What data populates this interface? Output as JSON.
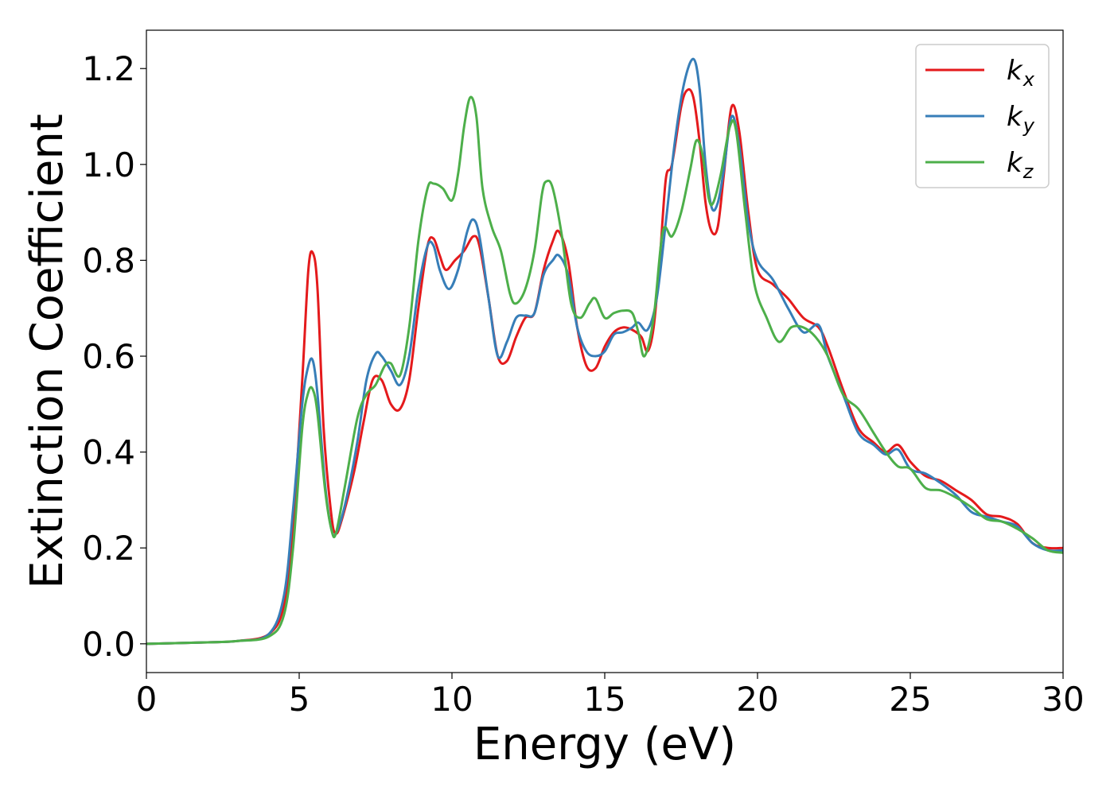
{
  "chart_data": {
    "type": "line",
    "title": "",
    "xlabel": "Energy (eV)",
    "ylabel": "Extinction Coefficient",
    "xlim": [
      0,
      30
    ],
    "ylim": [
      -0.06,
      1.28
    ],
    "xticks": [
      0,
      5,
      10,
      15,
      20,
      25,
      30
    ],
    "xtick_labels": [
      "0",
      "5",
      "10",
      "15",
      "20",
      "25",
      "30"
    ],
    "yticks": [
      0.0,
      0.2,
      0.4,
      0.6,
      0.8,
      1.0,
      1.2
    ],
    "ytick_labels": [
      "0.0",
      "0.2",
      "0.4",
      "0.6",
      "0.8",
      "1.0",
      "1.2"
    ],
    "grid": false,
    "legend_position": "top-right",
    "series": [
      {
        "name": "k",
        "subscript": "x",
        "color": "#e41a1c",
        "points": [
          [
            0,
            0
          ],
          [
            2,
            0.003
          ],
          [
            3,
            0.006
          ],
          [
            4,
            0.02
          ],
          [
            4.5,
            0.08
          ],
          [
            4.8,
            0.25
          ],
          [
            5.1,
            0.55
          ],
          [
            5.3,
            0.78
          ],
          [
            5.45,
            0.815
          ],
          [
            5.6,
            0.74
          ],
          [
            5.8,
            0.45
          ],
          [
            6.05,
            0.27
          ],
          [
            6.2,
            0.23
          ],
          [
            6.4,
            0.26
          ],
          [
            6.8,
            0.36
          ],
          [
            7.1,
            0.46
          ],
          [
            7.4,
            0.55
          ],
          [
            7.7,
            0.55
          ],
          [
            8.0,
            0.5
          ],
          [
            8.3,
            0.49
          ],
          [
            8.6,
            0.55
          ],
          [
            8.9,
            0.7
          ],
          [
            9.2,
            0.83
          ],
          [
            9.4,
            0.845
          ],
          [
            9.6,
            0.81
          ],
          [
            9.8,
            0.78
          ],
          [
            10.1,
            0.8
          ],
          [
            10.4,
            0.82
          ],
          [
            10.7,
            0.85
          ],
          [
            10.9,
            0.83
          ],
          [
            11.2,
            0.72
          ],
          [
            11.5,
            0.6
          ],
          [
            11.8,
            0.59
          ],
          [
            12.1,
            0.64
          ],
          [
            12.4,
            0.68
          ],
          [
            12.7,
            0.69
          ],
          [
            13.0,
            0.78
          ],
          [
            13.3,
            0.84
          ],
          [
            13.5,
            0.86
          ],
          [
            13.8,
            0.8
          ],
          [
            14.1,
            0.66
          ],
          [
            14.4,
            0.58
          ],
          [
            14.7,
            0.575
          ],
          [
            15.0,
            0.62
          ],
          [
            15.3,
            0.65
          ],
          [
            15.6,
            0.66
          ],
          [
            15.9,
            0.655
          ],
          [
            16.2,
            0.64
          ],
          [
            16.4,
            0.61
          ],
          [
            16.6,
            0.66
          ],
          [
            16.8,
            0.8
          ],
          [
            17.0,
            0.97
          ],
          [
            17.2,
            1.0
          ],
          [
            17.5,
            1.12
          ],
          [
            17.7,
            1.155
          ],
          [
            17.9,
            1.14
          ],
          [
            18.1,
            1.05
          ],
          [
            18.3,
            0.92
          ],
          [
            18.5,
            0.86
          ],
          [
            18.7,
            0.87
          ],
          [
            18.9,
            0.98
          ],
          [
            19.15,
            1.12
          ],
          [
            19.4,
            1.07
          ],
          [
            19.7,
            0.9
          ],
          [
            20.0,
            0.78
          ],
          [
            20.5,
            0.75
          ],
          [
            21.0,
            0.72
          ],
          [
            21.5,
            0.68
          ],
          [
            22.0,
            0.66
          ],
          [
            22.3,
            0.62
          ],
          [
            22.8,
            0.53
          ],
          [
            23.3,
            0.45
          ],
          [
            23.8,
            0.42
          ],
          [
            24.2,
            0.4
          ],
          [
            24.6,
            0.415
          ],
          [
            25.0,
            0.38
          ],
          [
            25.5,
            0.35
          ],
          [
            26.0,
            0.34
          ],
          [
            26.5,
            0.32
          ],
          [
            27.0,
            0.3
          ],
          [
            27.5,
            0.27
          ],
          [
            28.0,
            0.265
          ],
          [
            28.5,
            0.25
          ],
          [
            29.0,
            0.21
          ],
          [
            29.5,
            0.2
          ],
          [
            30,
            0.2
          ]
        ]
      },
      {
        "name": "k",
        "subscript": "y",
        "color": "#377eb8",
        "points": [
          [
            0,
            0
          ],
          [
            2,
            0.003
          ],
          [
            3,
            0.006
          ],
          [
            4,
            0.02
          ],
          [
            4.5,
            0.1
          ],
          [
            4.8,
            0.28
          ],
          [
            5.1,
            0.5
          ],
          [
            5.3,
            0.58
          ],
          [
            5.45,
            0.59
          ],
          [
            5.6,
            0.52
          ],
          [
            5.85,
            0.33
          ],
          [
            6.05,
            0.24
          ],
          [
            6.2,
            0.23
          ],
          [
            6.5,
            0.29
          ],
          [
            6.9,
            0.42
          ],
          [
            7.2,
            0.55
          ],
          [
            7.5,
            0.605
          ],
          [
            7.7,
            0.6
          ],
          [
            8.0,
            0.57
          ],
          [
            8.3,
            0.54
          ],
          [
            8.6,
            0.6
          ],
          [
            8.9,
            0.74
          ],
          [
            9.2,
            0.83
          ],
          [
            9.4,
            0.83
          ],
          [
            9.6,
            0.78
          ],
          [
            9.9,
            0.74
          ],
          [
            10.2,
            0.78
          ],
          [
            10.5,
            0.86
          ],
          [
            10.7,
            0.885
          ],
          [
            10.9,
            0.85
          ],
          [
            11.2,
            0.72
          ],
          [
            11.5,
            0.6
          ],
          [
            11.8,
            0.63
          ],
          [
            12.1,
            0.68
          ],
          [
            12.4,
            0.685
          ],
          [
            12.7,
            0.69
          ],
          [
            13.0,
            0.77
          ],
          [
            13.3,
            0.8
          ],
          [
            13.5,
            0.81
          ],
          [
            13.8,
            0.77
          ],
          [
            14.1,
            0.66
          ],
          [
            14.4,
            0.61
          ],
          [
            14.7,
            0.6
          ],
          [
            15.0,
            0.61
          ],
          [
            15.3,
            0.645
          ],
          [
            15.6,
            0.65
          ],
          [
            15.9,
            0.66
          ],
          [
            16.1,
            0.67
          ],
          [
            16.4,
            0.655
          ],
          [
            16.7,
            0.72
          ],
          [
            17.0,
            0.88
          ],
          [
            17.3,
            1.05
          ],
          [
            17.6,
            1.17
          ],
          [
            17.9,
            1.22
          ],
          [
            18.1,
            1.16
          ],
          [
            18.3,
            1.0
          ],
          [
            18.5,
            0.91
          ],
          [
            18.7,
            0.92
          ],
          [
            18.9,
            0.99
          ],
          [
            19.15,
            1.1
          ],
          [
            19.4,
            1.04
          ],
          [
            19.7,
            0.88
          ],
          [
            20.0,
            0.8
          ],
          [
            20.5,
            0.76
          ],
          [
            21.0,
            0.7
          ],
          [
            21.5,
            0.65
          ],
          [
            22.0,
            0.665
          ],
          [
            22.3,
            0.6
          ],
          [
            22.8,
            0.52
          ],
          [
            23.3,
            0.44
          ],
          [
            23.8,
            0.415
          ],
          [
            24.2,
            0.395
          ],
          [
            24.6,
            0.405
          ],
          [
            25.0,
            0.365
          ],
          [
            25.5,
            0.355
          ],
          [
            26.0,
            0.335
          ],
          [
            26.5,
            0.31
          ],
          [
            27.0,
            0.275
          ],
          [
            27.5,
            0.265
          ],
          [
            28.0,
            0.255
          ],
          [
            28.5,
            0.245
          ],
          [
            29.0,
            0.21
          ],
          [
            29.5,
            0.195
          ],
          [
            30,
            0.195
          ]
        ]
      },
      {
        "name": "k",
        "subscript": "z",
        "color": "#4daf4a",
        "points": [
          [
            0,
            0
          ],
          [
            2,
            0.003
          ],
          [
            3,
            0.006
          ],
          [
            4,
            0.015
          ],
          [
            4.5,
            0.06
          ],
          [
            4.8,
            0.2
          ],
          [
            5.1,
            0.45
          ],
          [
            5.3,
            0.525
          ],
          [
            5.45,
            0.53
          ],
          [
            5.6,
            0.48
          ],
          [
            5.85,
            0.32
          ],
          [
            6.05,
            0.24
          ],
          [
            6.2,
            0.23
          ],
          [
            6.5,
            0.33
          ],
          [
            6.9,
            0.47
          ],
          [
            7.2,
            0.52
          ],
          [
            7.5,
            0.54
          ],
          [
            7.8,
            0.58
          ],
          [
            8.0,
            0.585
          ],
          [
            8.3,
            0.56
          ],
          [
            8.6,
            0.66
          ],
          [
            8.9,
            0.84
          ],
          [
            9.2,
            0.95
          ],
          [
            9.4,
            0.96
          ],
          [
            9.7,
            0.95
          ],
          [
            10.0,
            0.925
          ],
          [
            10.2,
            0.98
          ],
          [
            10.4,
            1.08
          ],
          [
            10.6,
            1.14
          ],
          [
            10.8,
            1.1
          ],
          [
            11.0,
            0.95
          ],
          [
            11.3,
            0.87
          ],
          [
            11.6,
            0.82
          ],
          [
            11.9,
            0.73
          ],
          [
            12.1,
            0.71
          ],
          [
            12.4,
            0.74
          ],
          [
            12.7,
            0.82
          ],
          [
            12.95,
            0.94
          ],
          [
            13.1,
            0.965
          ],
          [
            13.3,
            0.95
          ],
          [
            13.6,
            0.85
          ],
          [
            13.9,
            0.71
          ],
          [
            14.2,
            0.68
          ],
          [
            14.5,
            0.71
          ],
          [
            14.7,
            0.72
          ],
          [
            15.0,
            0.68
          ],
          [
            15.3,
            0.69
          ],
          [
            15.6,
            0.695
          ],
          [
            15.9,
            0.69
          ],
          [
            16.1,
            0.65
          ],
          [
            16.3,
            0.6
          ],
          [
            16.6,
            0.68
          ],
          [
            16.9,
            0.86
          ],
          [
            17.2,
            0.85
          ],
          [
            17.5,
            0.9
          ],
          [
            17.8,
            0.99
          ],
          [
            18.0,
            1.05
          ],
          [
            18.2,
            1.02
          ],
          [
            18.4,
            0.93
          ],
          [
            18.55,
            0.92
          ],
          [
            18.8,
            0.98
          ],
          [
            19.1,
            1.08
          ],
          [
            19.3,
            1.07
          ],
          [
            19.6,
            0.9
          ],
          [
            19.9,
            0.75
          ],
          [
            20.3,
            0.68
          ],
          [
            20.7,
            0.63
          ],
          [
            21.1,
            0.66
          ],
          [
            21.5,
            0.66
          ],
          [
            21.9,
            0.64
          ],
          [
            22.3,
            0.6
          ],
          [
            22.8,
            0.52
          ],
          [
            23.3,
            0.49
          ],
          [
            23.8,
            0.44
          ],
          [
            24.2,
            0.4
          ],
          [
            24.6,
            0.37
          ],
          [
            25.0,
            0.365
          ],
          [
            25.5,
            0.325
          ],
          [
            26.0,
            0.32
          ],
          [
            26.5,
            0.305
          ],
          [
            27.0,
            0.285
          ],
          [
            27.5,
            0.26
          ],
          [
            28.0,
            0.255
          ],
          [
            28.5,
            0.24
          ],
          [
            29.0,
            0.22
          ],
          [
            29.5,
            0.195
          ],
          [
            30,
            0.19
          ]
        ]
      }
    ]
  }
}
